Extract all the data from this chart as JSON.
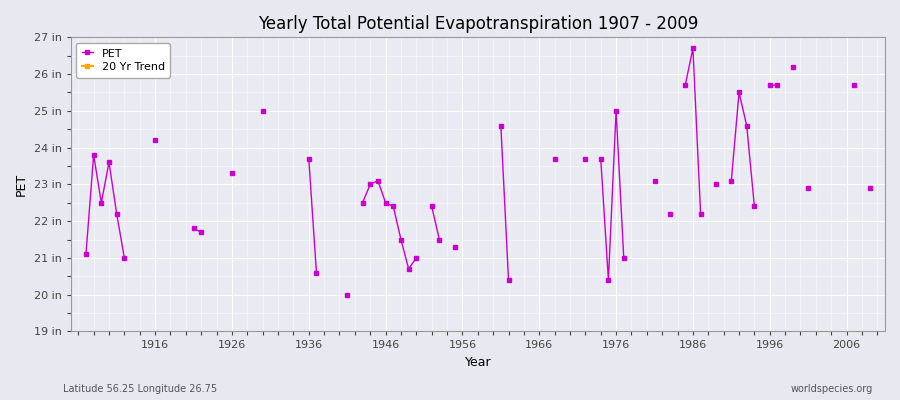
{
  "title": "Yearly Total Potential Evapotranspiration 1907 - 2009",
  "xlabel": "Year",
  "ylabel": "PET",
  "subtitle_left": "Latitude 56.25 Longitude 26.75",
  "subtitle_right": "worldspecies.org",
  "ylim": [
    19,
    27
  ],
  "xlim": [
    1905,
    2011
  ],
  "ytick_labels": [
    "19 in",
    "20 in",
    "21 in",
    "22 in",
    "23 in",
    "24 in",
    "25 in",
    "26 in",
    "27 in"
  ],
  "ytick_values": [
    19,
    20,
    21,
    22,
    23,
    24,
    25,
    26,
    27
  ],
  "xtick_values": [
    1916,
    1926,
    1936,
    1946,
    1956,
    1966,
    1976,
    1986,
    1996,
    2006
  ],
  "pet_color": "#CC00CC",
  "trend_color": "#FFA500",
  "fig_bg_color": "#E8E8F0",
  "plot_bg_color": "#EAEAF2",
  "grid_major_color": "#FFFFFF",
  "grid_minor_color": "#FFFFFF",
  "years": [
    1907,
    1908,
    1909,
    1910,
    1911,
    1912,
    1916,
    1921,
    1922,
    1926,
    1930,
    1936,
    1937,
    1941,
    1943,
    1944,
    1945,
    1946,
    1947,
    1948,
    1949,
    1950,
    1952,
    1953,
    1955,
    1961,
    1962,
    1968,
    1972,
    1974,
    1975,
    1976,
    1977,
    1981,
    1983,
    1985,
    1986,
    1987,
    1989,
    1991,
    1992,
    1993,
    1994,
    1996,
    1997,
    1999,
    2001,
    2007,
    2009
  ],
  "pet_values": [
    21.1,
    23.8,
    22.5,
    23.6,
    22.2,
    21.0,
    24.2,
    21.8,
    21.7,
    23.3,
    25.0,
    23.7,
    20.6,
    20.0,
    22.5,
    23.0,
    23.1,
    22.5,
    22.4,
    21.5,
    20.7,
    21.0,
    22.4,
    21.5,
    21.3,
    24.6,
    20.4,
    23.7,
    23.7,
    23.7,
    20.4,
    25.0,
    21.0,
    23.1,
    22.2,
    25.7,
    26.7,
    22.2,
    23.0,
    23.1,
    25.5,
    24.6,
    22.4,
    25.7,
    25.7,
    26.2,
    22.9,
    25.7,
    22.9
  ],
  "legend_entries": [
    "PET",
    "20 Yr Trend"
  ]
}
